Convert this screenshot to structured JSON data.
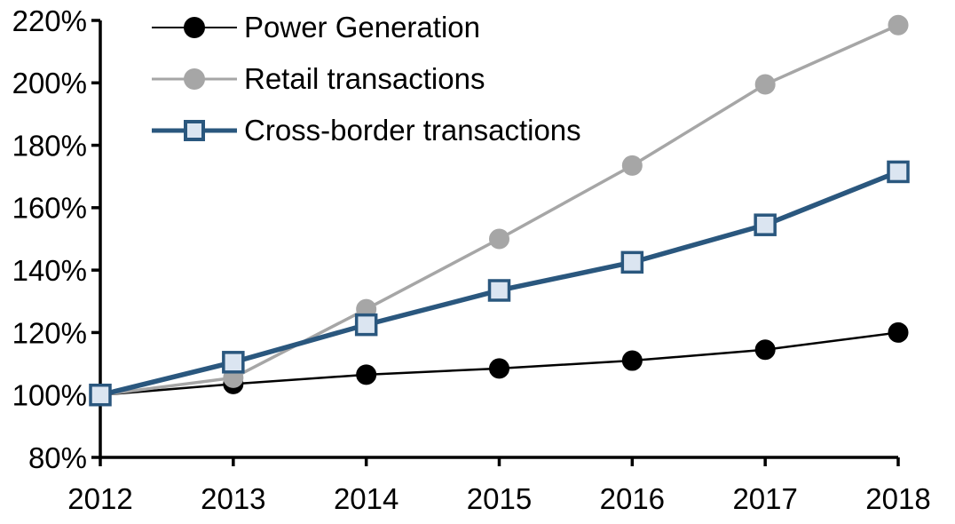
{
  "chart_data": {
    "type": "line",
    "title": "",
    "x": [
      2012,
      2013,
      2014,
      2015,
      2016,
      2017,
      2018
    ],
    "x_tick_labels": [
      "2012",
      "2013",
      "2014",
      "2015",
      "2016",
      "2017",
      "2018"
    ],
    "y_tick_labels": [
      "220%",
      "200%",
      "180%",
      "160%",
      "140%",
      "120%",
      "100%",
      "80%"
    ],
    "y_axis": {
      "min": 80,
      "max": 220,
      "step": 20,
      "unit": "%"
    },
    "grid": false,
    "legend_position": "top-left",
    "series": [
      {
        "name": "Power Generation",
        "values": [
          100,
          103.5,
          106.5,
          108.5,
          111,
          114.5,
          120
        ],
        "line_color": "#000000",
        "line_width": 2.5,
        "marker": "circle",
        "marker_fill": "#000000",
        "marker_stroke": "#000000"
      },
      {
        "name": "Retail transactions",
        "values": [
          100,
          105.5,
          127.5,
          150,
          173.5,
          199.5,
          218.5
        ],
        "line_color": "#a6a6a6",
        "line_width": 3.5,
        "marker": "circle",
        "marker_fill": "#a6a6a6",
        "marker_stroke": "#a6a6a6"
      },
      {
        "name": "Cross-border transactions",
        "values": [
          100,
          110.5,
          122.5,
          133.5,
          142.5,
          154.5,
          171.5
        ],
        "line_color": "#2a577e",
        "line_width": 5.5,
        "marker": "square",
        "marker_fill": "#dbe5f1",
        "marker_stroke": "#2a577e"
      }
    ]
  }
}
